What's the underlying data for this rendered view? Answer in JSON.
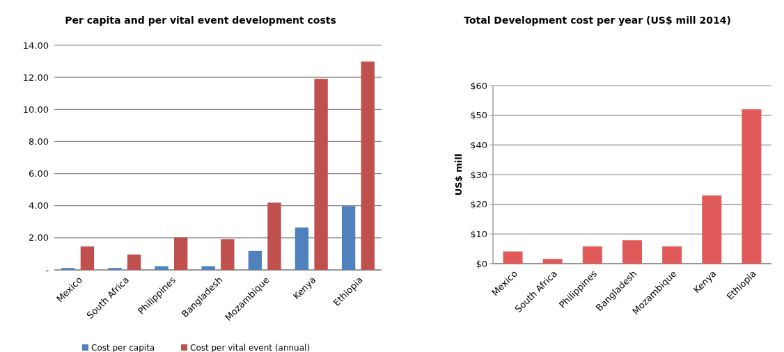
{
  "chart_data": [
    {
      "type": "bar",
      "title": "Per capita and per vital event development costs",
      "categories": [
        "Mexico",
        "South Africa",
        "Philippines",
        "Bangladesh",
        "Mozambique",
        "Kenya",
        "Ethiopia"
      ],
      "series": [
        {
          "name": "Cost per capita",
          "color": "#4f81bd",
          "values": [
            0.12,
            0.12,
            0.23,
            0.23,
            1.18,
            2.64,
            3.98
          ]
        },
        {
          "name": "Cost per vital event (annual)",
          "color": "#c0504d",
          "values": [
            1.46,
            0.96,
            2.02,
            1.91,
            4.19,
            11.9,
            12.98
          ]
        }
      ],
      "ylim": [
        0,
        14
      ],
      "yticks": [
        {
          "value": 0,
          "label": "-"
        },
        {
          "value": 2,
          "label": "2.00"
        },
        {
          "value": 4,
          "label": "4.00"
        },
        {
          "value": 6,
          "label": "6.00"
        },
        {
          "value": 8,
          "label": "8.00"
        },
        {
          "value": 10,
          "label": "10.00"
        },
        {
          "value": 12,
          "label": "12.00"
        },
        {
          "value": 14,
          "label": "14.00"
        }
      ],
      "grid": "y",
      "legend": "bottom"
    },
    {
      "type": "bar",
      "title": "Total Development cost per year (US$ mill 2014)",
      "ylabel": "US$ mill",
      "categories": [
        "Mexico",
        "South Africa",
        "Philippines",
        "Bangladesh",
        "Mozambique",
        "Kenya",
        "Ethiopia"
      ],
      "values": [
        4.1,
        1.6,
        5.8,
        7.9,
        5.8,
        23,
        52
      ],
      "color": "#e05a5a",
      "ylim": [
        0,
        60
      ],
      "yticks": [
        {
          "value": 0,
          "label": "$0"
        },
        {
          "value": 10,
          "label": "$10"
        },
        {
          "value": 20,
          "label": "$20"
        },
        {
          "value": 30,
          "label": "$30"
        },
        {
          "value": 40,
          "label": "$40"
        },
        {
          "value": 50,
          "label": "$50"
        },
        {
          "value": 60,
          "label": "$60"
        }
      ],
      "grid": "y"
    }
  ]
}
